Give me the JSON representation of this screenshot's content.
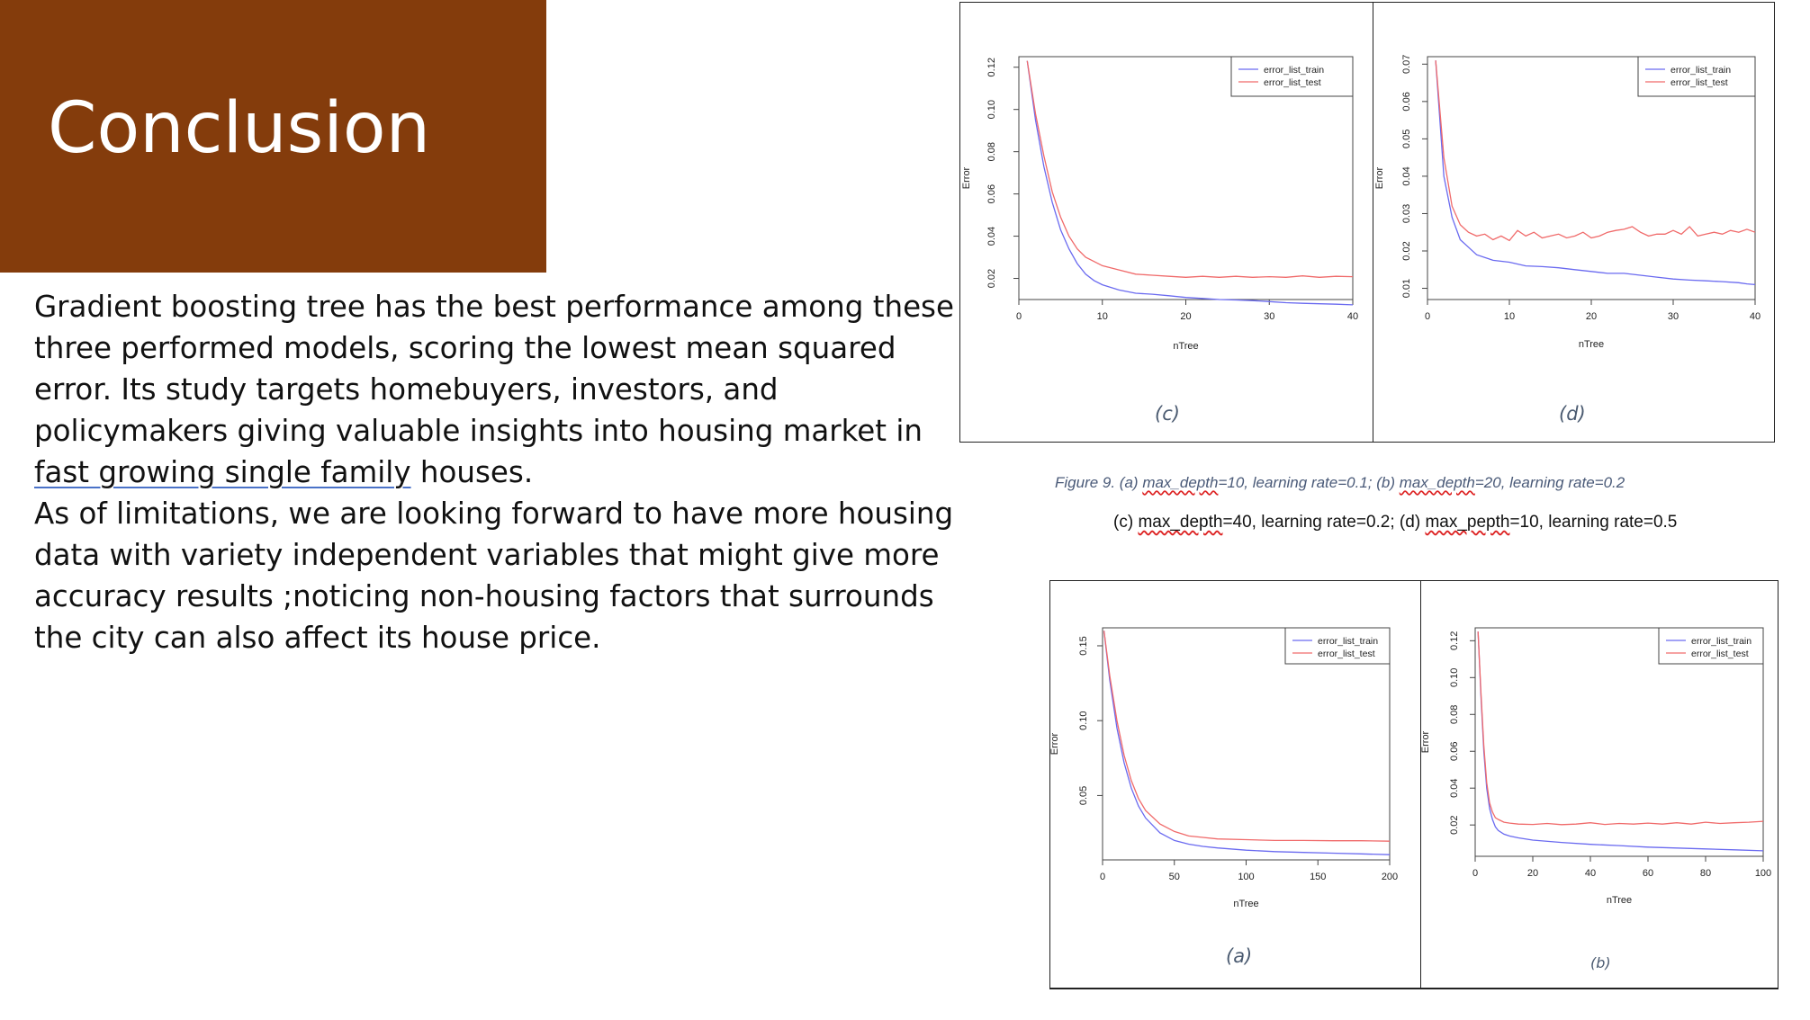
{
  "slide": {
    "title": "Conclusion",
    "body": {
      "p1_before": "Gradient boosting tree has the best performance among these three performed models, scoring the lowest mean squared error. Its study targets homebuyers, investors, and policymakers giving valuable insights into housing market in ",
      "p1_underlined": "fast growing single family",
      "p1_after": " houses.",
      "p2": "As of limitations, we are looking forward to have more housing data with variety independent variables that might give more accuracy results ;noticing non-housing factors that surrounds the city can also affect its house price."
    },
    "caption1": {
      "a": "Figure 9. (a) ",
      "a_u": "max_depth",
      "b": "=10, learning rate=0.1; (b) ",
      "b_u": "max_depth",
      "c": "=20, learning rate=0.2"
    },
    "caption2": {
      "a": "(c) ",
      "a_u": "max_depth",
      "b": "=40, learning rate=0.2; (d) ",
      "b_u": "max_pepth",
      "c": "=10, learning rate=0.5"
    }
  },
  "colors": {
    "title_bg": "#843c0c",
    "train": "#6a6af0",
    "test": "#f06a6a"
  },
  "chart_data": [
    {
      "id": "c",
      "label": "(c)",
      "type": "line",
      "xlabel": "nTree",
      "ylabel": "Error",
      "xlim": [
        0,
        40
      ],
      "ylim": [
        0.01,
        0.125
      ],
      "xticks": [
        0,
        10,
        20,
        30,
        40
      ],
      "yticks": [
        0.02,
        0.04,
        0.06,
        0.08,
        0.1,
        0.12
      ],
      "yticklabels": [
        "0.02",
        "0.04",
        "0.06",
        "0.08",
        "0.10",
        "0.12"
      ],
      "legend": "top-right",
      "series": [
        {
          "name": "error_list_train",
          "color": "#6a6af0",
          "x": [
            1,
            2,
            3,
            4,
            5,
            6,
            7,
            8,
            9,
            10,
            12,
            14,
            16,
            18,
            20,
            22,
            24,
            26,
            28,
            30,
            32,
            34,
            36,
            38,
            40
          ],
          "values": [
            0.123,
            0.095,
            0.073,
            0.056,
            0.043,
            0.034,
            0.027,
            0.022,
            0.019,
            0.017,
            0.0145,
            0.013,
            0.0125,
            0.0118,
            0.011,
            0.0105,
            0.01,
            0.0098,
            0.0095,
            0.009,
            0.0085,
            0.0082,
            0.008,
            0.0078,
            0.0075
          ]
        },
        {
          "name": "error_list_test",
          "color": "#f06a6a",
          "x": [
            1,
            2,
            3,
            4,
            5,
            6,
            7,
            8,
            9,
            10,
            12,
            14,
            16,
            18,
            20,
            22,
            24,
            26,
            28,
            30,
            32,
            34,
            36,
            38,
            40
          ],
          "values": [
            0.123,
            0.098,
            0.078,
            0.061,
            0.049,
            0.04,
            0.034,
            0.03,
            0.028,
            0.026,
            0.024,
            0.022,
            0.0215,
            0.021,
            0.0205,
            0.021,
            0.0205,
            0.021,
            0.0205,
            0.0208,
            0.0205,
            0.0212,
            0.0205,
            0.021,
            0.0208
          ]
        }
      ]
    },
    {
      "id": "d",
      "label": "(d)",
      "type": "line",
      "xlabel": "nTree",
      "ylabel": "Error",
      "xlim": [
        0,
        40
      ],
      "ylim": [
        0.007,
        0.072
      ],
      "xticks": [
        0,
        10,
        20,
        30,
        40
      ],
      "yticks": [
        0.01,
        0.02,
        0.03,
        0.04,
        0.05,
        0.06,
        0.07
      ],
      "yticklabels": [
        "0.01",
        "0.02",
        "0.03",
        "0.04",
        "0.05",
        "0.06",
        "0.07"
      ],
      "legend": "top-right",
      "series": [
        {
          "name": "error_list_train",
          "color": "#6a6af0",
          "x": [
            1,
            2,
            3,
            4,
            5,
            6,
            8,
            10,
            12,
            14,
            16,
            18,
            20,
            22,
            24,
            26,
            28,
            30,
            32,
            34,
            36,
            38,
            39,
            40
          ],
          "values": [
            0.071,
            0.04,
            0.029,
            0.023,
            0.021,
            0.019,
            0.0175,
            0.017,
            0.016,
            0.0158,
            0.0155,
            0.015,
            0.0145,
            0.014,
            0.014,
            0.0135,
            0.013,
            0.0125,
            0.0122,
            0.012,
            0.0118,
            0.0115,
            0.0112,
            0.011
          ]
        },
        {
          "name": "error_list_test",
          "color": "#f06a6a",
          "x": [
            1,
            2,
            3,
            4,
            5,
            6,
            7,
            8,
            9,
            10,
            11,
            12,
            13,
            14,
            15,
            16,
            17,
            18,
            19,
            20,
            21,
            22,
            23,
            24,
            25,
            26,
            27,
            28,
            29,
            30,
            31,
            32,
            33,
            34,
            35,
            36,
            37,
            38,
            39,
            40
          ],
          "values": [
            0.071,
            0.045,
            0.032,
            0.027,
            0.025,
            0.024,
            0.0245,
            0.023,
            0.024,
            0.0228,
            0.0255,
            0.024,
            0.025,
            0.0235,
            0.024,
            0.0245,
            0.0235,
            0.024,
            0.025,
            0.0235,
            0.024,
            0.025,
            0.0255,
            0.0258,
            0.0265,
            0.025,
            0.024,
            0.0245,
            0.0245,
            0.0255,
            0.0245,
            0.0265,
            0.024,
            0.0245,
            0.025,
            0.0245,
            0.0255,
            0.025,
            0.0258,
            0.025
          ]
        }
      ]
    },
    {
      "id": "a",
      "label": "(a)",
      "type": "line",
      "xlabel": "nTree",
      "ylabel": "Error",
      "xlim": [
        0,
        200
      ],
      "ylim": [
        0.007,
        0.162
      ],
      "xticks": [
        0,
        50,
        100,
        150,
        200
      ],
      "yticks": [
        0.05,
        0.1,
        0.15
      ],
      "yticklabels": [
        "0.05",
        "0.10",
        "0.15"
      ],
      "legend": "top-right",
      "series": [
        {
          "name": "error_list_train",
          "color": "#6a6af0",
          "x": [
            1,
            5,
            10,
            15,
            20,
            25,
            30,
            40,
            50,
            60,
            70,
            80,
            100,
            120,
            140,
            160,
            180,
            200
          ],
          "values": [
            0.16,
            0.127,
            0.095,
            0.072,
            0.055,
            0.043,
            0.035,
            0.025,
            0.02,
            0.0175,
            0.016,
            0.015,
            0.0135,
            0.0125,
            0.012,
            0.0115,
            0.011,
            0.0105
          ]
        },
        {
          "name": "error_list_test",
          "color": "#f06a6a",
          "x": [
            1,
            5,
            10,
            15,
            20,
            25,
            30,
            40,
            50,
            60,
            70,
            80,
            100,
            120,
            140,
            160,
            180,
            200
          ],
          "values": [
            0.16,
            0.13,
            0.1,
            0.077,
            0.06,
            0.048,
            0.04,
            0.031,
            0.026,
            0.023,
            0.022,
            0.021,
            0.0205,
            0.02,
            0.02,
            0.0198,
            0.0198,
            0.0195
          ]
        }
      ]
    },
    {
      "id": "b",
      "label": "(b)",
      "type": "line",
      "xlabel": "nTree",
      "ylabel": "Error",
      "xlim": [
        0,
        100
      ],
      "ylim": [
        0.003,
        0.127
      ],
      "xticks": [
        0,
        20,
        40,
        60,
        80,
        100
      ],
      "yticks": [
        0.02,
        0.04,
        0.06,
        0.08,
        0.1,
        0.12
      ],
      "yticklabels": [
        "0.02",
        "0.04",
        "0.06",
        "0.08",
        "0.10",
        "0.12"
      ],
      "legend": "top-right",
      "series": [
        {
          "name": "error_list_train",
          "color": "#6a6af0",
          "x": [
            1,
            2,
            3,
            4,
            5,
            6,
            7,
            8,
            10,
            12,
            15,
            20,
            30,
            40,
            50,
            60,
            70,
            80,
            90,
            100
          ],
          "values": [
            0.125,
            0.09,
            0.06,
            0.04,
            0.029,
            0.023,
            0.019,
            0.017,
            0.015,
            0.014,
            0.013,
            0.0118,
            0.0105,
            0.0095,
            0.0088,
            0.008,
            0.0075,
            0.007,
            0.0065,
            0.006
          ]
        },
        {
          "name": "error_list_test",
          "color": "#f06a6a",
          "x": [
            1,
            2,
            3,
            4,
            5,
            6,
            7,
            8,
            10,
            12,
            15,
            20,
            25,
            30,
            35,
            40,
            45,
            50,
            55,
            60,
            65,
            70,
            75,
            80,
            85,
            90,
            95,
            100
          ],
          "values": [
            0.125,
            0.092,
            0.063,
            0.043,
            0.032,
            0.027,
            0.024,
            0.023,
            0.0215,
            0.021,
            0.0205,
            0.0203,
            0.0208,
            0.0202,
            0.0205,
            0.0212,
            0.0203,
            0.0208,
            0.0205,
            0.021,
            0.0205,
            0.0212,
            0.0205,
            0.0215,
            0.0208,
            0.0212,
            0.0215,
            0.022
          ]
        }
      ]
    }
  ]
}
